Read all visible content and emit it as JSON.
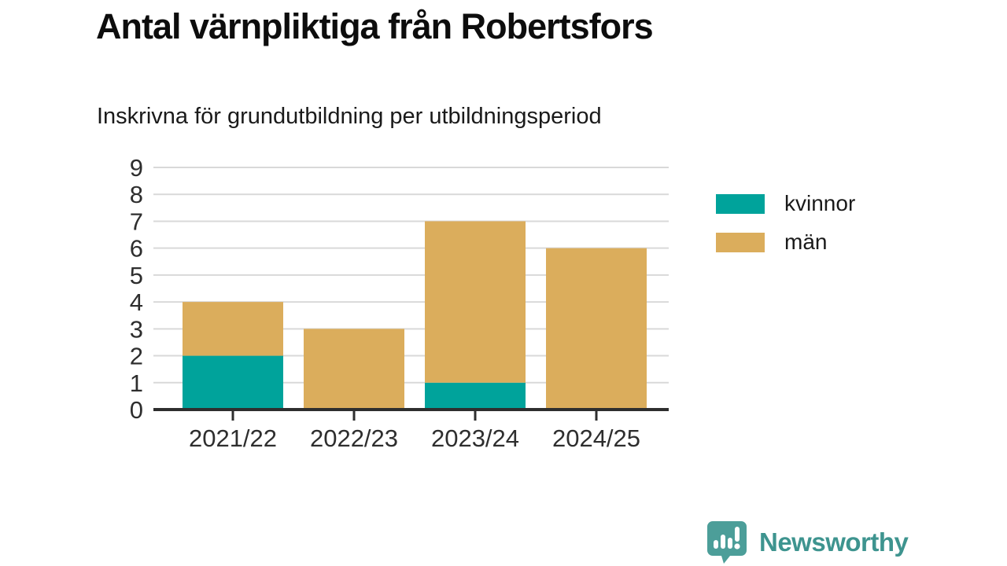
{
  "header": {
    "title": "Antal värnpliktiga från Robertsfors",
    "subtitle": "Inskrivna för grundutbildning per utbildningsperiod"
  },
  "chart_data": {
    "type": "bar",
    "stacked": true,
    "title": "Antal värnpliktiga från Robertsfors",
    "subtitle": "Inskrivna för grundutbildning per utbildningsperiod",
    "categories": [
      "2021/22",
      "2022/23",
      "2023/24",
      "2024/25"
    ],
    "series": [
      {
        "name": "kvinnor",
        "color": "#00a39b",
        "values": [
          2,
          0,
          1,
          0
        ]
      },
      {
        "name": "män",
        "color": "#dbad5c",
        "values": [
          2,
          3,
          6,
          6
        ]
      }
    ],
    "totals": [
      4,
      3,
      7,
      6
    ],
    "xlabel": "",
    "ylabel": "",
    "ylim": [
      0,
      9
    ],
    "yticks": [
      0,
      1,
      2,
      3,
      4,
      5,
      6,
      7,
      8,
      9
    ],
    "grid": true,
    "grid_color": "#d9d9d9",
    "axis_color": "#2e2e2e",
    "legend_position": "right"
  },
  "footer": {
    "brand": "Newsworthy",
    "brand_color": "#3e948f",
    "logo_color": "#4c9e99"
  }
}
